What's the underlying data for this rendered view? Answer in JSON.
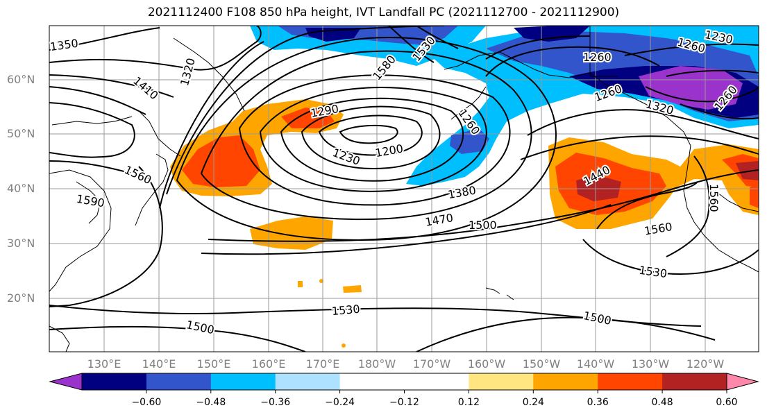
{
  "title": "2021112400 F108 850 hPa height, IVT Landfall PC (2021112700 - 2021112900)",
  "lat_labels": [
    "60°N",
    "50°N",
    "40°N",
    "30°N",
    "20°N"
  ],
  "lon_labels": [
    "130°E",
    "140°E",
    "150°E",
    "160°E",
    "170°E",
    "180°W",
    "170°W",
    "160°W",
    "150°W",
    "140°W",
    "130°W",
    "120°W"
  ],
  "contour_labels": {
    "l1350": "1350",
    "l1320": "1320",
    "l1410": "1410",
    "l1580": "1580",
    "l1530a": "1530",
    "l1290": "1290",
    "l1260a": "1260",
    "l1230a": "1230",
    "l1200": "1200",
    "l1560a": "1560",
    "l1590": "1590",
    "l1380": "1380",
    "l1470": "1470",
    "l1500a": "1500",
    "l1440": "1440",
    "l1260b": "1260",
    "l1260c": "1260",
    "l1230b": "1230",
    "l1260d": "1260",
    "l1260e": "1260",
    "l1320b": "1320",
    "l1560b": "1560",
    "l1560c": "1560",
    "l1530b": "1530",
    "l1530c": "1530",
    "l1500b": "1500",
    "l1500c": "1500"
  },
  "colorbar": {
    "colors": [
      "#9933cc",
      "#000080",
      "#3355cc",
      "#00bfff",
      "#aee0ff",
      "#ffffff",
      "#ffffff",
      "#ffe680",
      "#ffa500",
      "#ff4500",
      "#b22222",
      "#ff88aa"
    ],
    "ticks": [
      "−0.60",
      "−0.48",
      "−0.36",
      "−0.24",
      "−0.12",
      "0.12",
      "0.24",
      "0.36",
      "0.48",
      "0.60"
    ]
  }
}
